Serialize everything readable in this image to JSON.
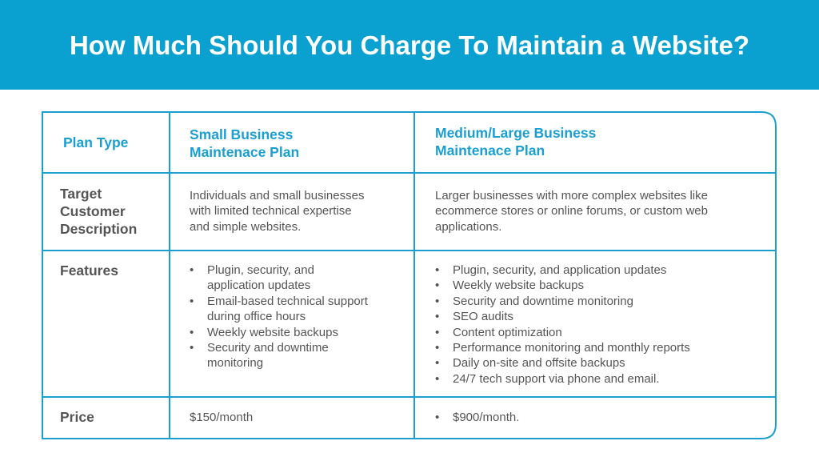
{
  "header": {
    "title": "How Much Should You Charge To Maintain a Website?"
  },
  "table": {
    "columns": [
      [
        "Plan Type"
      ],
      [
        "Small Business",
        "Maintenace Plan"
      ],
      [
        "Medium/Large Business",
        "Maintenace Plan"
      ]
    ],
    "rows": [
      {
        "cells": [
          [
            "Target",
            "Customer",
            "Description"
          ],
          [
            "Individuals and small businesses",
            "with limited technical expertise",
            "and simple websites."
          ],
          [
            "Larger businesses with more complex websites like",
            "ecommerce stores or online forums, or custom web",
            "applications."
          ]
        ]
      },
      {
        "cells": [
          [
            "Features"
          ],
          [
            [
              "Plugin, security, and",
              "application updates"
            ],
            [
              "Email-based technical support",
              "during office hours"
            ],
            [
              "Weekly website backups"
            ],
            [
              "Security and downtime",
              "monitoring"
            ]
          ],
          [
            [
              "Plugin, security, and application updates"
            ],
            [
              "Weekly website backups"
            ],
            [
              "Security and downtime monitoring"
            ],
            [
              "SEO audits"
            ],
            [
              "Content optimization"
            ],
            [
              "Performance monitoring and monthly reports"
            ],
            [
              "Daily on-site and offsite backups"
            ],
            [
              "24/7 tech support via phone and email."
            ]
          ]
        ]
      },
      {
        "cells": [
          [
            "Price"
          ],
          [
            "$150/month"
          ],
          [
            [
              "$900/month."
            ]
          ]
        ]
      }
    ]
  }
}
